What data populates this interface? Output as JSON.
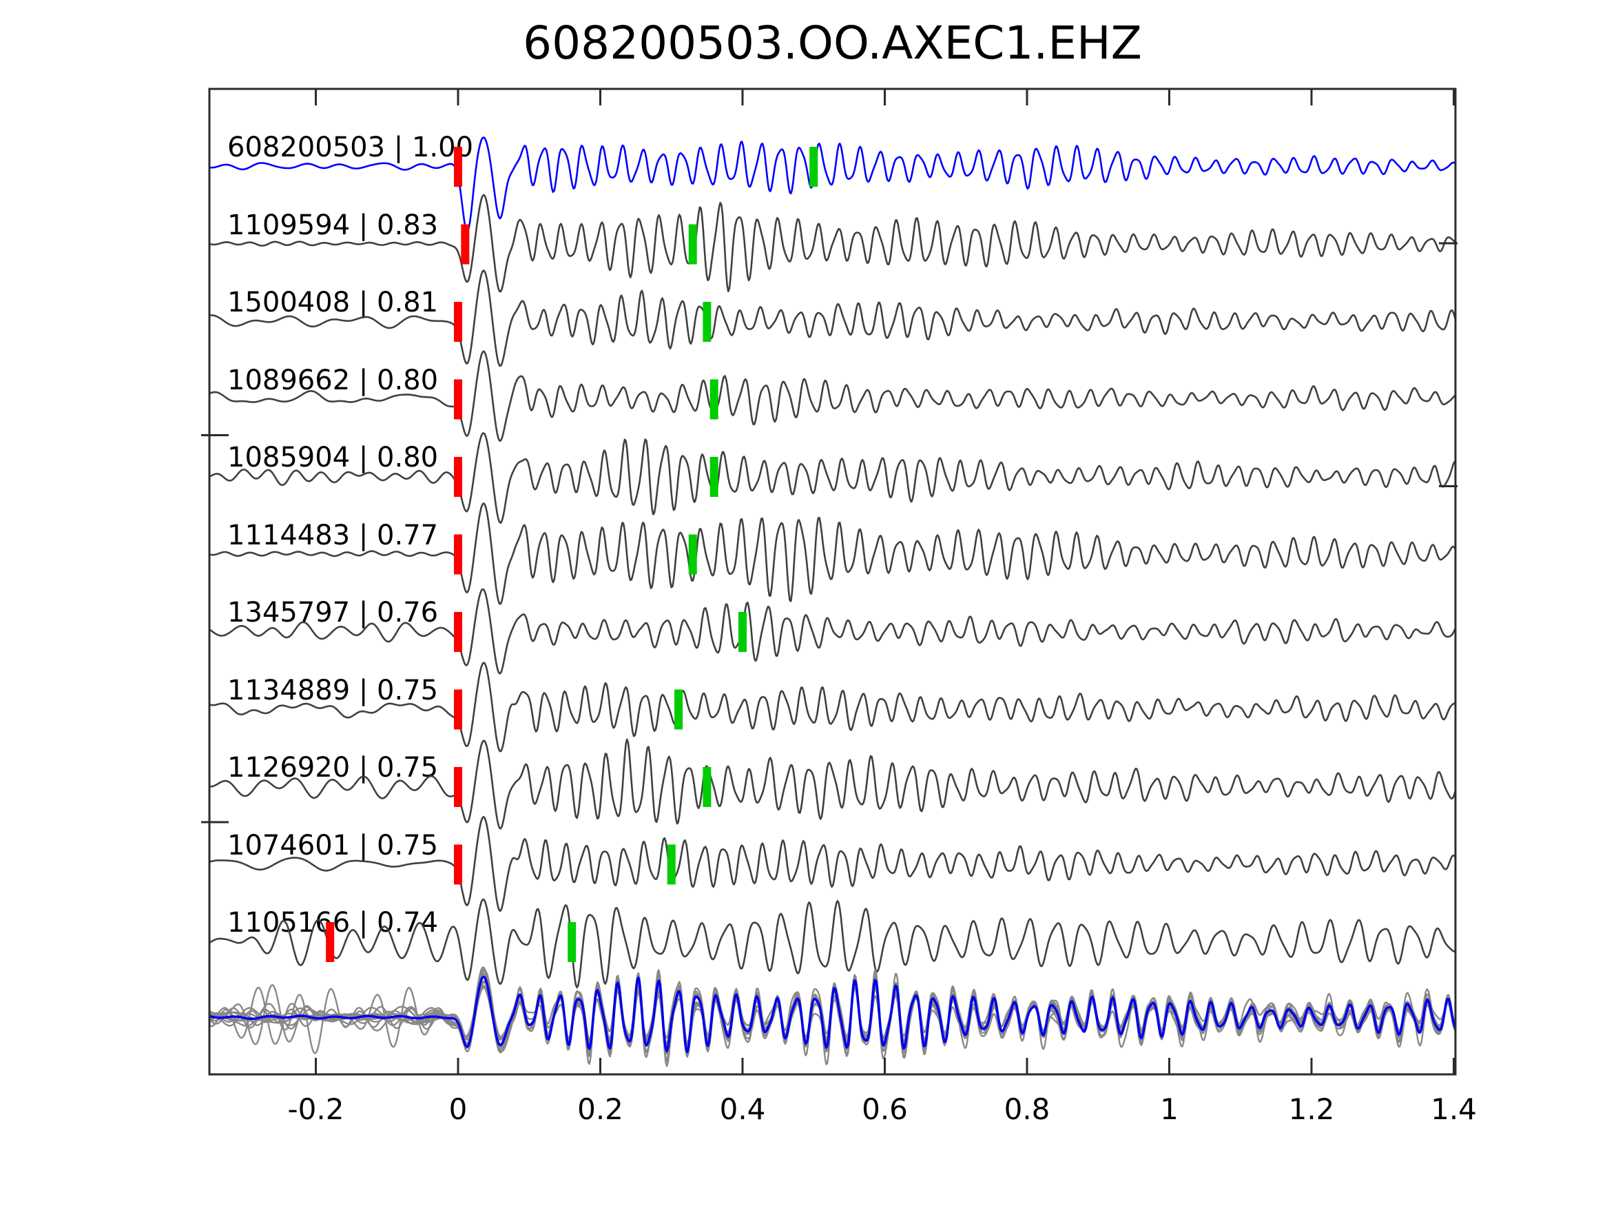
{
  "title": "608200503.OO.AXEC1.EHZ",
  "chart_data": {
    "type": "line",
    "kind": "template-matching waveform similarity plot (seismic traces, offset vertically)",
    "title": "608200503.OO.AXEC1.EHZ",
    "xlabel": "",
    "ylabel": "",
    "grid": false,
    "legend": "none",
    "xlim": [
      -0.35,
      1.4
    ],
    "x_ticks": [
      -0.2,
      0,
      0.2,
      0.4,
      0.6,
      0.8,
      1,
      1.2,
      1.4
    ],
    "x_tick_labels": [
      "-0.2",
      "0",
      "0.2",
      "0.4",
      "0.6",
      "0.8",
      "1",
      "1.2",
      "1.4"
    ],
    "colors": {
      "template_trace": "#0000ff",
      "detection_trace": "#404040",
      "overlay_gray": "#888888",
      "overlay_blue": "#0000ee",
      "red_pick_marker": "#ff0000",
      "green_pick_marker": "#00cc00",
      "axes": "#2b2b2b",
      "text": "#000000"
    },
    "series": [
      {
        "label": "608200503 | 1.00",
        "id": "608200503",
        "correlation": 1.0,
        "color": "blue",
        "red_pick": 0.0,
        "green_pick": 0.5
      },
      {
        "label": "1109594 | 0.83",
        "id": "1109594",
        "correlation": 0.83,
        "color": "gray",
        "red_pick": 0.01,
        "green_pick": 0.33
      },
      {
        "label": "1500408 | 0.81",
        "id": "1500408",
        "correlation": 0.81,
        "color": "gray",
        "red_pick": 0.0,
        "green_pick": 0.35
      },
      {
        "label": "1089662 | 0.80",
        "id": "1089662",
        "correlation": 0.8,
        "color": "gray",
        "red_pick": 0.0,
        "green_pick": 0.36
      },
      {
        "label": "1085904 | 0.80",
        "id": "1085904",
        "correlation": 0.8,
        "color": "gray",
        "red_pick": 0.0,
        "green_pick": 0.36
      },
      {
        "label": "1114483 | 0.77",
        "id": "1114483",
        "correlation": 0.77,
        "color": "gray",
        "red_pick": 0.0,
        "green_pick": 0.33
      },
      {
        "label": "1345797 | 0.76",
        "id": "1345797",
        "correlation": 0.76,
        "color": "gray",
        "red_pick": 0.0,
        "green_pick": 0.4
      },
      {
        "label": "1134889 | 0.75",
        "id": "1134889",
        "correlation": 0.75,
        "color": "gray",
        "red_pick": 0.0,
        "green_pick": 0.31
      },
      {
        "label": "1126920 | 0.75",
        "id": "1126920",
        "correlation": 0.75,
        "color": "gray",
        "red_pick": 0.0,
        "green_pick": 0.35
      },
      {
        "label": "1074601 | 0.75",
        "id": "1074601",
        "correlation": 0.75,
        "color": "gray",
        "red_pick": 0.0,
        "green_pick": 0.3
      },
      {
        "label": "1105166 | 0.74",
        "id": "1105166",
        "correlation": 0.74,
        "color": "gray",
        "red_pick": -0.18,
        "green_pick": 0.16
      }
    ],
    "overlay_stack": {
      "description": "bottom panel: all detections superimposed (gray) with template stack (blue)",
      "n_gray_traces": 11,
      "blue_trace": "template stack"
    }
  }
}
